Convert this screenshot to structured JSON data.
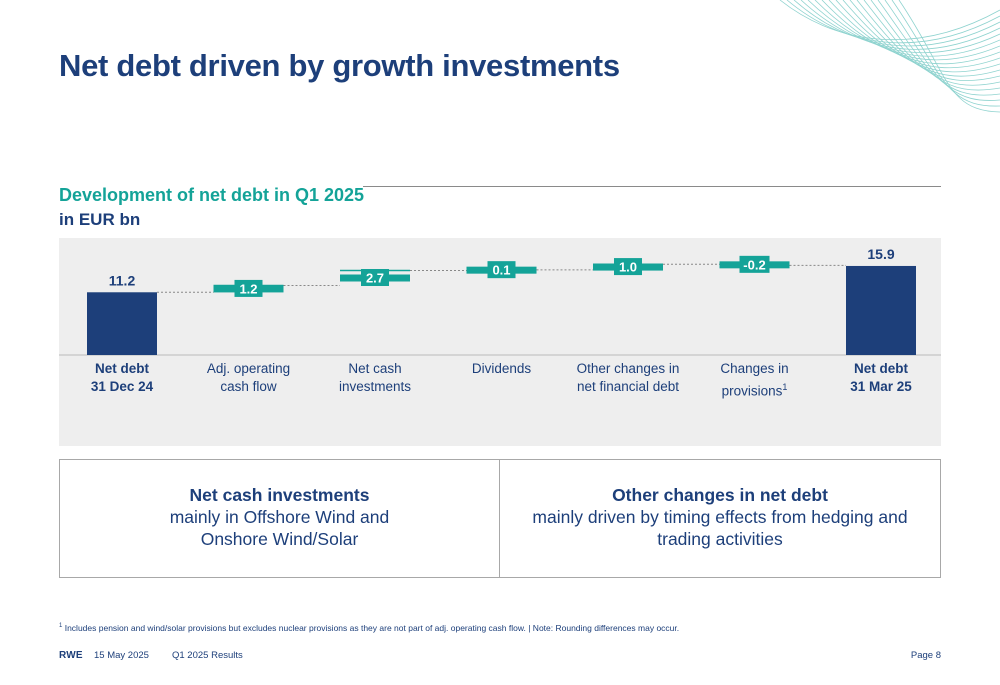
{
  "title": "Net debt driven by growth investments",
  "subtitle": "Development of net debt in Q1 2025",
  "unit": "in EUR bn",
  "colors": {
    "navy": "#1d3f7a",
    "teal": "#14a398",
    "panel": "#eeeeee"
  },
  "chart_data": {
    "type": "bar",
    "subtype": "waterfall",
    "title": "Development of net debt in Q1 2025",
    "ylabel": "in EUR bn",
    "categories": [
      [
        "Net debt",
        "31 Dec 24"
      ],
      [
        "Adj. operating",
        "cash flow"
      ],
      [
        "Net cash",
        "investments"
      ],
      [
        "Dividends"
      ],
      [
        "Other changes in",
        "net financial debt"
      ],
      [
        "Changes in",
        "provisions"
      ],
      [
        "Net debt",
        "31 Mar 25"
      ]
    ],
    "category_footnote": [
      "",
      "",
      "",
      "",
      "",
      "1",
      ""
    ],
    "bold_categories": [
      true,
      false,
      false,
      false,
      false,
      false,
      true
    ],
    "kinds": [
      "total",
      "delta",
      "delta",
      "delta",
      "delta",
      "delta",
      "total"
    ],
    "values": [
      11.2,
      1.2,
      2.7,
      0.1,
      1.0,
      -0.2,
      15.9
    ],
    "labels": [
      "11.2",
      "1.2",
      "2.7",
      "0.1",
      "1.0",
      "-0.2",
      "15.9"
    ],
    "ylim": [
      0,
      16.5
    ]
  },
  "boxes": {
    "left": {
      "title": "Net cash investments",
      "lines": [
        "mainly in Offshore Wind and",
        "Onshore Wind/Solar"
      ]
    },
    "right": {
      "title": "Other changes in net debt",
      "lines": [
        "mainly driven by timing effects from hedging and",
        "trading activities"
      ]
    }
  },
  "footnote": {
    "marker": "1",
    "text": "Includes pension and wind/solar provisions but excludes nuclear provisions as they are not part of adj. operating cash flow. | Note: Rounding differences may occur."
  },
  "footer": {
    "logo": "RWE",
    "date": "15 May 2025",
    "report": "Q1 2025 Results",
    "page": "Page 8"
  }
}
